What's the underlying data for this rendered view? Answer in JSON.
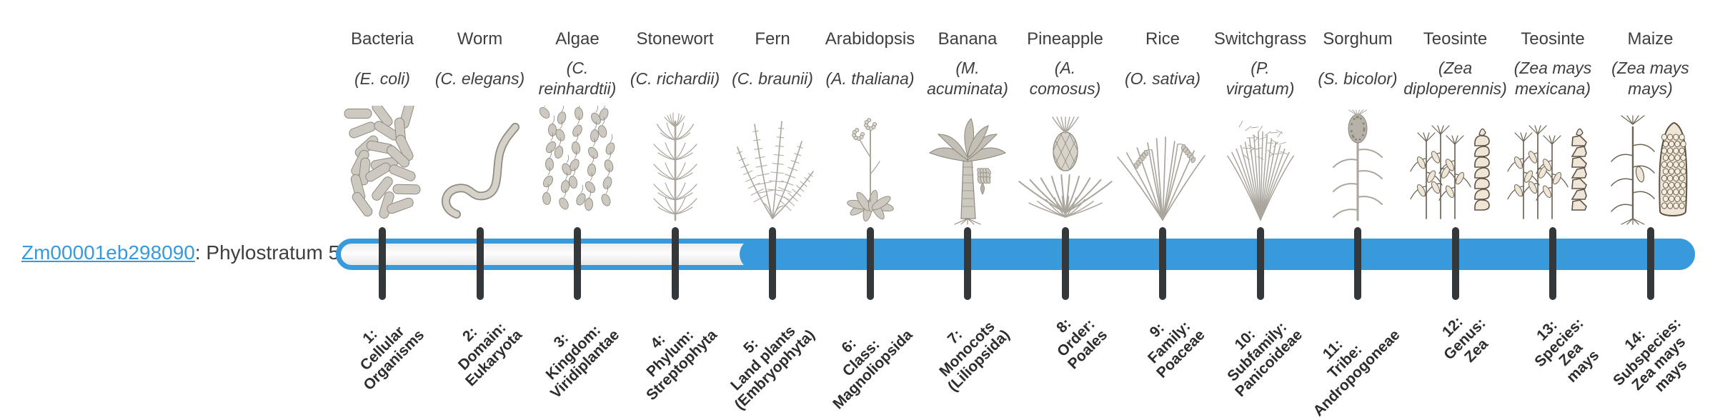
{
  "page": {
    "background": "#ffffff"
  },
  "gene": {
    "id": "Zm00001eb298090",
    "suffix": ": Phylostratum 5",
    "phylostratum": 5
  },
  "timeline": {
    "bar_color": "#3899db",
    "tick_color": "#35383b",
    "unfilled_color": "#f5f5f5",
    "total_strata": 14,
    "filled_from_stratum": 5
  },
  "strata": [
    {
      "number": 1,
      "common_name": "Bacteria",
      "scientific_lines": [
        "(E. coli)"
      ],
      "icon": "bacteria-icon",
      "clade_lines": [
        "1:",
        "Cellular",
        "Organisms"
      ]
    },
    {
      "number": 2,
      "common_name": "Worm",
      "scientific_lines": [
        "(C. elegans)"
      ],
      "icon": "worm-icon",
      "clade_lines": [
        "2:",
        "Domain:",
        "Eukaryota"
      ]
    },
    {
      "number": 3,
      "common_name": "Algae",
      "scientific_lines": [
        "(C.",
        "reinhardtii)"
      ],
      "icon": "algae-icon",
      "clade_lines": [
        "3:",
        "Kingdom:",
        "Viridiplantae"
      ]
    },
    {
      "number": 4,
      "common_name": "Stonewort",
      "scientific_lines": [
        "(C. richardii)"
      ],
      "icon": "stonewort-icon",
      "clade_lines": [
        "4:",
        "Phylum:",
        "Streptophyta"
      ]
    },
    {
      "number": 5,
      "common_name": "Fern",
      "scientific_lines": [
        "(C. braunii)"
      ],
      "icon": "fern-icon",
      "clade_lines": [
        "5:",
        "Land plants",
        "(Embryophyta)"
      ]
    },
    {
      "number": 6,
      "common_name": "Arabidopsis",
      "scientific_lines": [
        "(A. thaliana)"
      ],
      "icon": "arabidopsis-icon",
      "clade_lines": [
        "6:",
        "Class:",
        "Magnoliopsida"
      ]
    },
    {
      "number": 7,
      "common_name": "Banana",
      "scientific_lines": [
        "(M.",
        "acuminata)"
      ],
      "icon": "banana-icon",
      "clade_lines": [
        "7:",
        "Monocots",
        "(Liliopsida)"
      ]
    },
    {
      "number": 8,
      "common_name": "Pineapple",
      "scientific_lines": [
        "(A.",
        "comosus)"
      ],
      "icon": "pineapple-icon",
      "clade_lines": [
        "8:",
        "Order:",
        "Poales"
      ]
    },
    {
      "number": 9,
      "common_name": "Rice",
      "scientific_lines": [
        "(O. sativa)"
      ],
      "icon": "rice-icon",
      "clade_lines": [
        "9:",
        "Family:",
        "Poaceae"
      ]
    },
    {
      "number": 10,
      "common_name": "Switchgrass",
      "scientific_lines": [
        "(P.",
        "virgatum)"
      ],
      "icon": "switchgrass-icon",
      "clade_lines": [
        "10:",
        "Subfamily:",
        "Panicoideae"
      ]
    },
    {
      "number": 11,
      "common_name": "Sorghum",
      "scientific_lines": [
        "(S. bicolor)"
      ],
      "icon": "sorghum-icon",
      "clade_lines": [
        "11:",
        "Tribe:",
        "Andropogoneae"
      ]
    },
    {
      "number": 12,
      "common_name": "Teosinte",
      "scientific_lines": [
        "(Zea",
        "diploperennis)"
      ],
      "icon": "teosinte-diploperennis-icon",
      "clade_lines": [
        "12:",
        "Genus:",
        "Zea"
      ]
    },
    {
      "number": 13,
      "common_name": "Teosinte",
      "scientific_lines": [
        "(Zea mays",
        "mexicana)"
      ],
      "icon": "teosinte-mexicana-icon",
      "clade_lines": [
        "13:",
        "Species:",
        "Zea",
        "mays"
      ]
    },
    {
      "number": 14,
      "common_name": "Maize",
      "scientific_lines": [
        "(Zea mays",
        "mays)"
      ],
      "icon": "maize-icon",
      "clade_lines": [
        "14:",
        "Subspecies:",
        "Zea mays",
        "mays"
      ]
    }
  ]
}
